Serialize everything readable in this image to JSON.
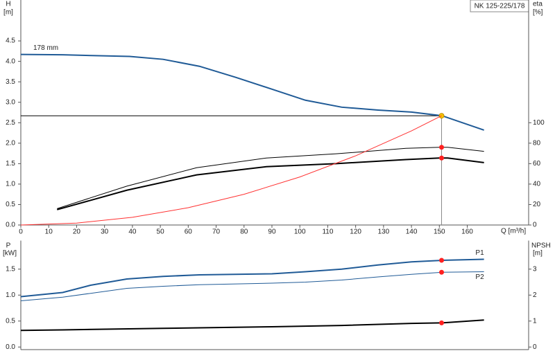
{
  "chart_data": [
    {
      "type": "line",
      "title": "NK 125-225/178",
      "y_label": "H",
      "y_unit": "[m]",
      "y2_label": "eta",
      "y2_unit": "[%]",
      "x_label": "Q [m³/h]",
      "xlim": [
        0,
        182
      ],
      "xticks": [
        0,
        10,
        20,
        30,
        40,
        50,
        60,
        70,
        80,
        90,
        100,
        110,
        120,
        130,
        140,
        150,
        160
      ],
      "ylim": [
        0,
        5.5
      ],
      "yticks": [
        {
          "value": 0,
          "label": "0.0"
        },
        0.5,
        {
          "value": 1,
          "label": "1.0"
        },
        1.5,
        {
          "value": 2,
          "label": "2.0"
        },
        2.5,
        {
          "value": 3,
          "label": "3.0"
        },
        3.5,
        {
          "value": 4,
          "label": "4.0"
        },
        4.5
      ],
      "y2lim": [
        0,
        220
      ],
      "y2ticks": [
        0,
        20,
        40,
        60,
        80,
        100
      ],
      "marker_x": 150.8,
      "duty_lines": true,
      "series": [
        {
          "name": "178 mm",
          "color": "#1f5a96",
          "line_width": 2,
          "marker": 2.67,
          "marker_color": "#f5c400",
          "x": [
            0,
            15,
            39,
            51,
            64,
            77,
            90,
            102,
            115,
            128,
            140,
            151,
            166
          ],
          "values": [
            4.17,
            4.16,
            4.12,
            4.05,
            3.88,
            3.61,
            3.32,
            3.05,
            2.88,
            2.81,
            2.76,
            2.67,
            2.32
          ]
        },
        {
          "color": "#000000",
          "line_width": 1,
          "axis": "y2",
          "marker": 76,
          "marker_color": "#ff2020",
          "x": [
            13,
            38,
            63,
            88,
            113,
            138,
            150,
            153,
            166
          ],
          "values": [
            16,
            38,
            56,
            65.5,
            69.6,
            75,
            76,
            76,
            72
          ]
        },
        {
          "color": "#000000",
          "line_width": 2,
          "axis": "y2",
          "marker": 65.5,
          "marker_color": "#ff2020",
          "x": [
            13,
            38,
            63,
            88,
            113,
            138,
            150,
            153,
            166
          ],
          "values": [
            15,
            34,
            49,
            57,
            60,
            64,
            65.5,
            65.5,
            61
          ]
        },
        {
          "color": "#ff3030",
          "line_width": 1,
          "x": [
            0,
            20,
            40,
            60,
            80,
            100,
            120,
            140,
            150.8
          ],
          "values": [
            0,
            0.047,
            0.188,
            0.423,
            0.751,
            1.174,
            1.691,
            2.301,
            2.67
          ]
        }
      ]
    },
    {
      "type": "line",
      "y_label": "P",
      "y_unit": "[kW]",
      "y2_label": "NPSH",
      "y2_unit": "[m]",
      "xlim": [
        0,
        182
      ],
      "ylim": [
        -0.05,
        2.05
      ],
      "yticks": [
        {
          "value": 0,
          "label": "0.0"
        },
        0.5,
        {
          "value": 1,
          "label": "1.0"
        },
        1.5
      ],
      "y2lim": [
        -0.1,
        4.1
      ],
      "y2ticks": [
        0,
        1,
        2,
        3
      ],
      "marker_x": 150.8,
      "series": [
        {
          "name": "P1",
          "color": "#1f5a96",
          "line_width": 2,
          "marker": 1.67,
          "marker_color": "#ff2020",
          "x": [
            0,
            15,
            25,
            38,
            51,
            64,
            90,
            102,
            115,
            128,
            140,
            151,
            166
          ],
          "values": [
            0.97,
            1.05,
            1.19,
            1.31,
            1.36,
            1.39,
            1.41,
            1.45,
            1.5,
            1.58,
            1.64,
            1.67,
            1.69
          ]
        },
        {
          "name": "P2",
          "color": "#1f5a96",
          "line_width": 1,
          "marker": 1.44,
          "marker_color": "#ff2020",
          "x": [
            0,
            15,
            38,
            51,
            64,
            90,
            102,
            115,
            128,
            140,
            151,
            166
          ],
          "values": [
            0.89,
            0.96,
            1.13,
            1.17,
            1.2,
            1.23,
            1.25,
            1.29,
            1.35,
            1.4,
            1.44,
            1.45
          ]
        },
        {
          "color": "#000000",
          "line_width": 2,
          "axis": "y2",
          "marker": 0.93,
          "marker_color": "#ff2020",
          "x": [
            0,
            15,
            51,
            90,
            115,
            140,
            151,
            166
          ],
          "values": [
            0.64,
            0.66,
            0.72,
            0.78,
            0.83,
            0.91,
            0.93,
            1.04
          ]
        }
      ]
    }
  ]
}
